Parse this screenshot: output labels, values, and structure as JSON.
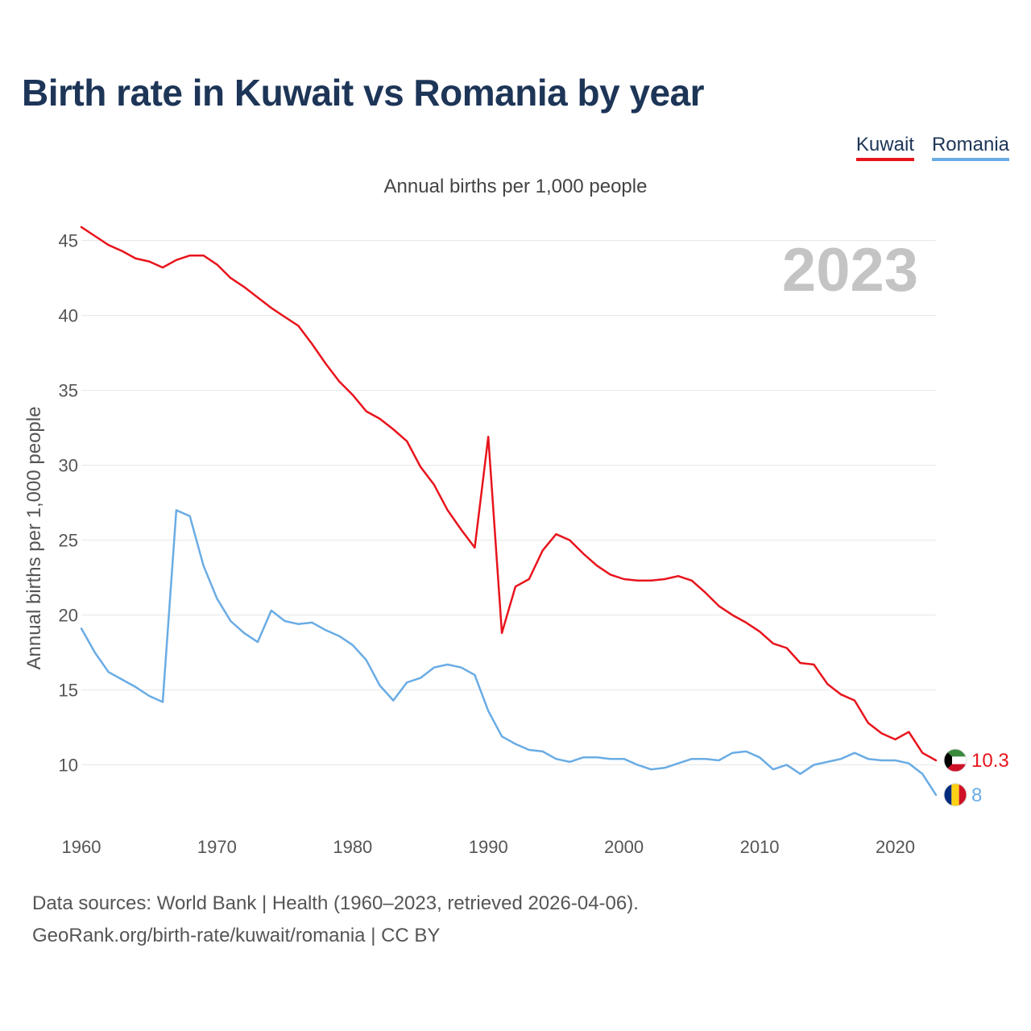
{
  "title": "Birth rate in Kuwait vs Romania by year",
  "subtitle": "Annual births per 1,000 people",
  "legend": [
    {
      "label": "Kuwait",
      "color": "#e8141c"
    },
    {
      "label": "Romania",
      "color": "#6aace4"
    }
  ],
  "footer": {
    "line1": "Data sources: World Bank | Health (1960–2023, retrieved 2026-04-06).",
    "line2": "GeoRank.org/birth-rate/kuwait/romania | CC BY"
  },
  "chart_data": {
    "type": "line",
    "title": "Birth rate in Kuwait vs Romania by year",
    "ylabel": "Annual births per 1,000 people",
    "xlabel": "",
    "year_watermark": "2023",
    "xlim": [
      1960,
      2023
    ],
    "ylim": [
      6,
      46
    ],
    "x_ticks": [
      1960,
      1970,
      1980,
      1990,
      2000,
      2010,
      2020
    ],
    "y_ticks": [
      10,
      15,
      20,
      25,
      30,
      35,
      40,
      45
    ],
    "grid": true,
    "x": [
      1960,
      1961,
      1962,
      1963,
      1964,
      1965,
      1966,
      1967,
      1968,
      1969,
      1970,
      1971,
      1972,
      1973,
      1974,
      1975,
      1976,
      1977,
      1978,
      1979,
      1980,
      1981,
      1982,
      1983,
      1984,
      1985,
      1986,
      1987,
      1988,
      1989,
      1990,
      1991,
      1992,
      1993,
      1994,
      1995,
      1996,
      1997,
      1998,
      1999,
      2000,
      2001,
      2002,
      2003,
      2004,
      2005,
      2006,
      2007,
      2008,
      2009,
      2010,
      2011,
      2012,
      2013,
      2014,
      2015,
      2016,
      2017,
      2018,
      2019,
      2020,
      2021,
      2022,
      2023
    ],
    "series": [
      {
        "name": "Kuwait",
        "color": "#e8141c",
        "end_label": "10.3",
        "flag": "kuwait-flag-icon",
        "values": [
          45.9,
          45.3,
          44.7,
          44.3,
          43.8,
          43.6,
          43.2,
          43.7,
          44.0,
          44.0,
          43.4,
          42.5,
          41.9,
          41.2,
          40.5,
          39.9,
          39.3,
          38.1,
          36.8,
          35.6,
          34.7,
          33.6,
          33.1,
          32.4,
          31.6,
          29.9,
          28.7,
          27.0,
          25.7,
          24.5,
          31.9,
          18.8,
          21.9,
          22.4,
          24.3,
          25.4,
          25.0,
          24.1,
          23.3,
          22.7,
          22.4,
          22.3,
          22.3,
          22.4,
          22.6,
          22.3,
          21.5,
          20.6,
          20.0,
          19.5,
          18.9,
          18.1,
          17.8,
          16.8,
          16.7,
          15.4,
          14.7,
          14.3,
          12.8,
          12.1,
          11.7,
          12.2,
          10.8,
          10.3
        ]
      },
      {
        "name": "Romania",
        "color": "#6aace4",
        "end_label": "8",
        "flag": "romania-flag-icon",
        "values": [
          19.1,
          17.5,
          16.2,
          15.7,
          15.2,
          14.6,
          14.2,
          27.0,
          26.6,
          23.3,
          21.1,
          19.6,
          18.8,
          18.2,
          20.3,
          19.6,
          19.4,
          19.5,
          19.0,
          18.6,
          18.0,
          17.0,
          15.3,
          14.3,
          15.5,
          15.8,
          16.5,
          16.7,
          16.5,
          16.0,
          13.6,
          11.9,
          11.4,
          11.0,
          10.9,
          10.4,
          10.2,
          10.5,
          10.5,
          10.4,
          10.4,
          10.0,
          9.7,
          9.8,
          10.1,
          10.4,
          10.4,
          10.3,
          10.8,
          10.9,
          10.5,
          9.7,
          10.0,
          9.4,
          10.0,
          10.2,
          10.4,
          10.8,
          10.4,
          10.3,
          10.3,
          10.1,
          9.4,
          8.0
        ]
      }
    ]
  }
}
